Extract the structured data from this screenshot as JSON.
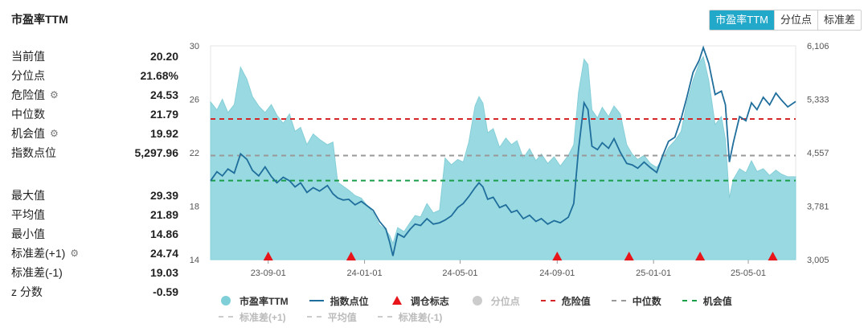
{
  "title": "市盈率TTM",
  "tabs": [
    {
      "label": "市盈率TTM",
      "active": true
    },
    {
      "label": "分位点",
      "active": false
    },
    {
      "label": "标准差",
      "active": false
    }
  ],
  "stats_top": [
    {
      "label": "当前值",
      "value": "20.20",
      "gear": false
    },
    {
      "label": "分位点",
      "value": "21.68%",
      "gear": false
    },
    {
      "label": "危险值",
      "value": "24.53",
      "gear": true
    },
    {
      "label": "中位数",
      "value": "21.79",
      "gear": false
    },
    {
      "label": "机会值",
      "value": "19.92",
      "gear": true
    },
    {
      "label": "指数点位",
      "value": "5,297.96",
      "gear": false
    }
  ],
  "stats_bottom": [
    {
      "label": "最大值",
      "value": "29.39",
      "gear": false
    },
    {
      "label": "平均值",
      "value": "21.89",
      "gear": false
    },
    {
      "label": "最小值",
      "value": "14.86",
      "gear": false
    },
    {
      "label": "标准差(+1)",
      "value": "24.74",
      "gear": true
    },
    {
      "label": "标准差(-1)",
      "value": "19.03",
      "gear": false
    },
    {
      "label": "z 分数",
      "value": "-0.59",
      "gear": false
    }
  ],
  "legend": [
    [
      {
        "label": "市盈率TTM",
        "kind": "dot",
        "color": "#7fcfd9",
        "muted": false
      },
      {
        "label": "指数点位",
        "kind": "line",
        "color": "#1f6e9c",
        "muted": false
      },
      {
        "label": "调仓标志",
        "kind": "tri",
        "color": "#e8151b",
        "muted": false
      },
      {
        "label": "分位点",
        "kind": "dot",
        "color": "#cccccc",
        "muted": true
      },
      {
        "label": "危险值",
        "kind": "dash",
        "color": "#d62728",
        "muted": false
      },
      {
        "label": "中位数",
        "kind": "dash",
        "color": "#999999",
        "muted": false
      },
      {
        "label": "机会值",
        "kind": "dash",
        "color": "#1a9e4a",
        "muted": false
      }
    ],
    [
      {
        "label": "标准差(+1)",
        "kind": "dash",
        "color": "#cccccc",
        "muted": true
      },
      {
        "label": "平均值",
        "kind": "dash",
        "color": "#cccccc",
        "muted": true
      },
      {
        "label": "标准差(-1)",
        "kind": "dash",
        "color": "#cccccc",
        "muted": true
      }
    ]
  ],
  "chart_data": {
    "type": "area",
    "x_range": [
      "2023-06-20",
      "2025-06-30"
    ],
    "x_ticks": [
      "23-09-01",
      "24-01-01",
      "24-05-01",
      "24-09-01",
      "25-01-01",
      "25-05-01"
    ],
    "y_left": {
      "min": 14,
      "max": 30,
      "ticks": [
        14,
        18,
        22,
        26,
        30
      ]
    },
    "y_right": {
      "min": 3005,
      "max": 6106,
      "ticks": [
        "3,005",
        "3,781",
        "4,557",
        "5,333",
        "6,106"
      ]
    },
    "ref_lines": [
      {
        "name": "危险值",
        "value": 24.53,
        "color": "#d62728"
      },
      {
        "name": "中位数",
        "value": 21.79,
        "color": "#999999"
      },
      {
        "name": "机会值",
        "value": 19.92,
        "color": "#1a9e4a"
      }
    ],
    "series": [
      {
        "name": "市盈率TTM",
        "axis": "left",
        "color": "#7fcfd9",
        "points": [
          [
            "2023-06-20",
            25.8
          ],
          [
            "2023-06-28",
            25.2
          ],
          [
            "2023-07-05",
            26.0
          ],
          [
            "2023-07-12",
            25.0
          ],
          [
            "2023-07-20",
            25.6
          ],
          [
            "2023-07-28",
            28.4
          ],
          [
            "2023-08-05",
            27.5
          ],
          [
            "2023-08-12",
            26.2
          ],
          [
            "2023-08-20",
            25.5
          ],
          [
            "2023-08-28",
            25.0
          ],
          [
            "2023-09-05",
            25.6
          ],
          [
            "2023-09-12",
            24.8
          ],
          [
            "2023-09-20",
            24.2
          ],
          [
            "2023-09-28",
            24.9
          ],
          [
            "2023-10-05",
            23.6
          ],
          [
            "2023-10-12",
            23.9
          ],
          [
            "2023-10-20",
            22.6
          ],
          [
            "2023-10-28",
            23.4
          ],
          [
            "2023-11-05",
            23.0
          ],
          [
            "2023-11-15",
            22.6
          ],
          [
            "2023-11-22",
            22.8
          ],
          [
            "2023-11-28",
            19.8
          ],
          [
            "2023-12-05",
            19.5
          ],
          [
            "2023-12-12",
            19.2
          ],
          [
            "2023-12-20",
            18.8
          ],
          [
            "2023-12-28",
            18.6
          ],
          [
            "2024-01-05",
            18.0
          ],
          [
            "2024-01-12",
            17.5
          ],
          [
            "2024-01-20",
            16.6
          ],
          [
            "2024-01-28",
            16.2
          ],
          [
            "2024-02-02",
            15.8
          ],
          [
            "2024-02-06",
            15.2
          ],
          [
            "2024-02-12",
            16.4
          ],
          [
            "2024-02-20",
            16.1
          ],
          [
            "2024-02-28",
            16.8
          ],
          [
            "2024-03-05",
            17.3
          ],
          [
            "2024-03-12",
            17.2
          ],
          [
            "2024-03-20",
            18.2
          ],
          [
            "2024-03-28",
            17.5
          ],
          [
            "2024-04-05",
            17.7
          ],
          [
            "2024-04-12",
            21.6
          ],
          [
            "2024-04-20",
            21.1
          ],
          [
            "2024-04-28",
            21.5
          ],
          [
            "2024-05-05",
            21.3
          ],
          [
            "2024-05-12",
            22.8
          ],
          [
            "2024-05-20",
            25.5
          ],
          [
            "2024-05-25",
            26.2
          ],
          [
            "2024-05-30",
            25.7
          ],
          [
            "2024-06-05",
            23.5
          ],
          [
            "2024-06-12",
            23.8
          ],
          [
            "2024-06-20",
            22.4
          ],
          [
            "2024-06-28",
            23.1
          ],
          [
            "2024-07-05",
            22.6
          ],
          [
            "2024-07-12",
            22.9
          ],
          [
            "2024-07-20",
            21.6
          ],
          [
            "2024-07-28",
            22.3
          ],
          [
            "2024-08-05",
            21.4
          ],
          [
            "2024-08-12",
            21.9
          ],
          [
            "2024-08-20",
            21.2
          ],
          [
            "2024-08-28",
            21.7
          ],
          [
            "2024-09-05",
            21.0
          ],
          [
            "2024-09-15",
            21.8
          ],
          [
            "2024-09-22",
            22.6
          ],
          [
            "2024-09-28",
            26.5
          ],
          [
            "2024-10-05",
            29.0
          ],
          [
            "2024-10-10",
            28.6
          ],
          [
            "2024-10-15",
            25.2
          ],
          [
            "2024-10-22",
            24.6
          ],
          [
            "2024-10-28",
            25.4
          ],
          [
            "2024-11-05",
            24.7
          ],
          [
            "2024-11-12",
            25.5
          ],
          [
            "2024-11-20",
            24.9
          ],
          [
            "2024-11-28",
            22.6
          ],
          [
            "2024-12-05",
            21.9
          ],
          [
            "2024-12-12",
            21.5
          ],
          [
            "2024-12-20",
            21.8
          ],
          [
            "2024-12-28",
            21.2
          ],
          [
            "2025-01-05",
            20.9
          ],
          [
            "2025-01-12",
            21.5
          ],
          [
            "2025-01-20",
            22.4
          ],
          [
            "2025-01-28",
            22.9
          ],
          [
            "2025-02-05",
            23.6
          ],
          [
            "2025-02-12",
            25.7
          ],
          [
            "2025-02-20",
            27.4
          ],
          [
            "2025-02-28",
            28.7
          ],
          [
            "2025-03-05",
            29.2
          ],
          [
            "2025-03-12",
            27.4
          ],
          [
            "2025-03-20",
            24.1
          ],
          [
            "2025-03-28",
            24.7
          ],
          [
            "2025-04-02",
            23.0
          ],
          [
            "2025-04-07",
            18.6
          ],
          [
            "2025-04-12",
            20.0
          ],
          [
            "2025-04-20",
            20.8
          ],
          [
            "2025-04-28",
            20.5
          ],
          [
            "2025-05-05",
            21.4
          ],
          [
            "2025-05-12",
            20.6
          ],
          [
            "2025-05-20",
            20.8
          ],
          [
            "2025-05-28",
            20.3
          ],
          [
            "2025-06-05",
            20.7
          ],
          [
            "2025-06-12",
            20.4
          ],
          [
            "2025-06-20",
            20.2
          ],
          [
            "2025-06-30",
            20.2
          ]
        ]
      },
      {
        "name": "指数点位",
        "axis": "right",
        "color": "#1f6e9c",
        "points": [
          [
            "2023-06-20",
            4150
          ],
          [
            "2023-06-28",
            4280
          ],
          [
            "2023-07-05",
            4220
          ],
          [
            "2023-07-12",
            4320
          ],
          [
            "2023-07-20",
            4260
          ],
          [
            "2023-07-28",
            4540
          ],
          [
            "2023-08-05",
            4460
          ],
          [
            "2023-08-12",
            4300
          ],
          [
            "2023-08-20",
            4220
          ],
          [
            "2023-08-28",
            4350
          ],
          [
            "2023-09-05",
            4210
          ],
          [
            "2023-09-12",
            4120
          ],
          [
            "2023-09-20",
            4200
          ],
          [
            "2023-09-28",
            4150
          ],
          [
            "2023-10-05",
            4060
          ],
          [
            "2023-10-12",
            4120
          ],
          [
            "2023-10-20",
            3980
          ],
          [
            "2023-10-28",
            4050
          ],
          [
            "2023-11-05",
            4000
          ],
          [
            "2023-11-15",
            4080
          ],
          [
            "2023-11-22",
            3960
          ],
          [
            "2023-11-28",
            3900
          ],
          [
            "2023-12-05",
            3870
          ],
          [
            "2023-12-12",
            3880
          ],
          [
            "2023-12-20",
            3800
          ],
          [
            "2023-12-28",
            3850
          ],
          [
            "2024-01-05",
            3780
          ],
          [
            "2024-01-12",
            3720
          ],
          [
            "2024-01-20",
            3560
          ],
          [
            "2024-01-28",
            3450
          ],
          [
            "2024-02-02",
            3250
          ],
          [
            "2024-02-06",
            3060
          ],
          [
            "2024-02-12",
            3380
          ],
          [
            "2024-02-20",
            3330
          ],
          [
            "2024-02-28",
            3450
          ],
          [
            "2024-03-05",
            3520
          ],
          [
            "2024-03-12",
            3500
          ],
          [
            "2024-03-20",
            3600
          ],
          [
            "2024-03-28",
            3520
          ],
          [
            "2024-04-05",
            3540
          ],
          [
            "2024-04-12",
            3580
          ],
          [
            "2024-04-20",
            3640
          ],
          [
            "2024-04-28",
            3760
          ],
          [
            "2024-05-05",
            3820
          ],
          [
            "2024-05-12",
            3920
          ],
          [
            "2024-05-20",
            4050
          ],
          [
            "2024-05-25",
            4120
          ],
          [
            "2024-05-30",
            4060
          ],
          [
            "2024-06-05",
            3880
          ],
          [
            "2024-06-12",
            3910
          ],
          [
            "2024-06-20",
            3760
          ],
          [
            "2024-06-28",
            3800
          ],
          [
            "2024-07-05",
            3690
          ],
          [
            "2024-07-12",
            3720
          ],
          [
            "2024-07-20",
            3600
          ],
          [
            "2024-07-28",
            3650
          ],
          [
            "2024-08-05",
            3560
          ],
          [
            "2024-08-12",
            3600
          ],
          [
            "2024-08-20",
            3520
          ],
          [
            "2024-08-28",
            3570
          ],
          [
            "2024-09-05",
            3540
          ],
          [
            "2024-09-15",
            3620
          ],
          [
            "2024-09-22",
            3820
          ],
          [
            "2024-09-28",
            4600
          ],
          [
            "2024-10-05",
            5280
          ],
          [
            "2024-10-10",
            5180
          ],
          [
            "2024-10-15",
            4650
          ],
          [
            "2024-10-22",
            4600
          ],
          [
            "2024-10-28",
            4700
          ],
          [
            "2024-11-05",
            4620
          ],
          [
            "2024-11-12",
            4760
          ],
          [
            "2024-11-20",
            4560
          ],
          [
            "2024-11-28",
            4400
          ],
          [
            "2024-12-05",
            4380
          ],
          [
            "2024-12-12",
            4330
          ],
          [
            "2024-12-20",
            4420
          ],
          [
            "2024-12-28",
            4340
          ],
          [
            "2025-01-05",
            4270
          ],
          [
            "2025-01-12",
            4500
          ],
          [
            "2025-01-20",
            4720
          ],
          [
            "2025-01-28",
            4780
          ],
          [
            "2025-02-05",
            5050
          ],
          [
            "2025-02-12",
            5350
          ],
          [
            "2025-02-20",
            5720
          ],
          [
            "2025-02-28",
            5900
          ],
          [
            "2025-03-05",
            6080
          ],
          [
            "2025-03-12",
            5850
          ],
          [
            "2025-03-20",
            5400
          ],
          [
            "2025-03-28",
            5450
          ],
          [
            "2025-04-02",
            5250
          ],
          [
            "2025-04-07",
            4420
          ],
          [
            "2025-04-12",
            4700
          ],
          [
            "2025-04-20",
            5080
          ],
          [
            "2025-04-28",
            5020
          ],
          [
            "2025-05-05",
            5280
          ],
          [
            "2025-05-12",
            5180
          ],
          [
            "2025-05-20",
            5360
          ],
          [
            "2025-05-28",
            5250
          ],
          [
            "2025-06-05",
            5420
          ],
          [
            "2025-06-12",
            5320
          ],
          [
            "2025-06-20",
            5220
          ],
          [
            "2025-06-30",
            5298
          ]
        ]
      }
    ],
    "markers": {
      "name": "调仓标志",
      "color": "#e8151b",
      "dates": [
        "2023-09-01",
        "2023-12-15",
        "2024-09-01",
        "2024-12-01",
        "2025-03-01",
        "2025-06-01"
      ]
    }
  }
}
